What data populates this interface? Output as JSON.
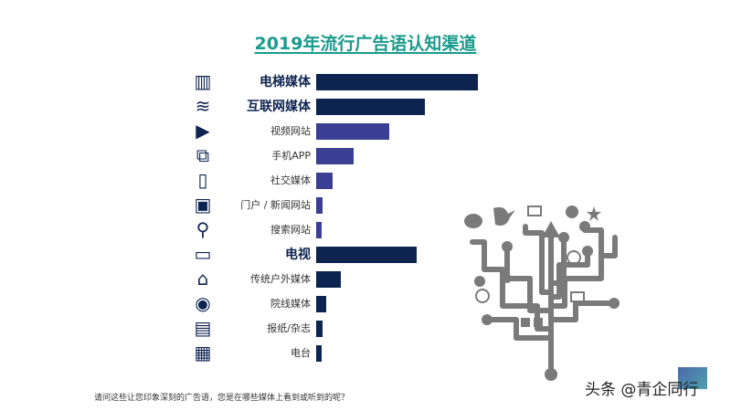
{
  "title": "2019年流行广告语认知渠道",
  "note": "请问这些让您印象深刻的广告语，您是在哪些媒体上看到或听到的呢？",
  "watermark": "头条 @青企同行",
  "colors": {
    "primary": "#0d2350",
    "secondary": "#3b3f94",
    "title": "#1a9a8c",
    "tree": "#7a7a7a"
  },
  "chart_data": {
    "type": "bar",
    "orientation": "horizontal",
    "title": "2019年流行广告语认知渠道",
    "value_scale": "relative bar length, longest bar = 100 (no values printed)",
    "categories": [
      "电梯媒体",
      "互联网媒体",
      "视频网站",
      "手机APP",
      "社交媒体",
      "门户 / 新闻网站",
      "搜索网站",
      "电视",
      "传统户外媒体",
      "院线媒体",
      "报纸/杂志",
      "电台"
    ],
    "values": [
      100,
      67,
      45,
      23,
      10,
      4,
      3.5,
      62,
      15,
      6,
      4,
      3.5
    ],
    "bold": [
      true,
      true,
      false,
      false,
      false,
      false,
      false,
      true,
      false,
      false,
      false,
      false
    ],
    "color_group": [
      "primary",
      "primary",
      "secondary",
      "secondary",
      "secondary",
      "secondary",
      "secondary",
      "primary",
      "primary",
      "primary",
      "primary",
      "primary"
    ],
    "icons": [
      "building-icon",
      "wifi-icon",
      "play-icon",
      "app-icon",
      "social-phone-icon",
      "browser-icon",
      "search-icon",
      "tv-icon",
      "billboard-icon",
      "film-reel-icon",
      "newspaper-icon",
      "radio-icon"
    ]
  }
}
